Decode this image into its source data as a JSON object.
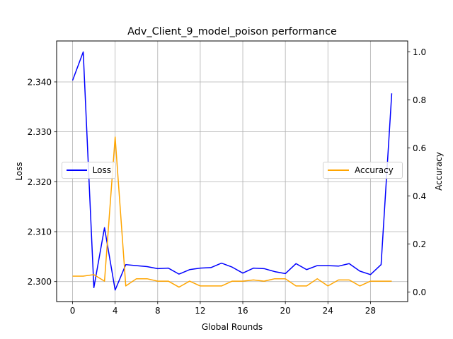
{
  "chart_data": {
    "type": "line",
    "title": "Adv_Client_9_model_poison performance",
    "xlabel": "Global Rounds",
    "ylabel_left": "Loss",
    "ylabel_right": "Accuracy",
    "x": [
      0,
      1,
      2,
      3,
      4,
      5,
      6,
      7,
      8,
      9,
      10,
      11,
      12,
      13,
      14,
      15,
      16,
      17,
      18,
      19,
      20,
      21,
      22,
      23,
      24,
      25,
      26,
      27,
      28,
      29,
      30
    ],
    "xticks": [
      0,
      4,
      8,
      12,
      16,
      20,
      24,
      28
    ],
    "xlim": [
      -1.5,
      31.5
    ],
    "ylim_left": [
      2.296,
      2.3482
    ],
    "yticks_left": [
      2.3,
      2.31,
      2.32,
      2.33,
      2.34
    ],
    "ytick_labels_left": [
      "2.300",
      "2.310",
      "2.320",
      "2.330",
      "2.340"
    ],
    "ylim_right": [
      -0.04,
      1.045
    ],
    "yticks_right": [
      0.0,
      0.2,
      0.4,
      0.6,
      0.8,
      1.0
    ],
    "ytick_labels_right": [
      "0.0",
      "0.2",
      "0.4",
      "0.6",
      "0.8",
      "1.0"
    ],
    "grid": true,
    "series": [
      {
        "name": "Loss",
        "axis": "left",
        "color": "#0000ff",
        "values": [
          2.3403,
          2.346,
          2.2988,
          2.3108,
          2.2983,
          2.3034,
          2.3032,
          2.303,
          2.3026,
          2.3027,
          2.3015,
          2.3024,
          2.3027,
          2.3028,
          2.3037,
          2.3029,
          2.3017,
          2.3027,
          2.3026,
          2.302,
          2.3016,
          2.3036,
          2.3024,
          2.3032,
          2.3032,
          2.3031,
          2.3036,
          2.3021,
          2.3014,
          2.3034,
          2.3377
        ]
      },
      {
        "name": "Accuracy",
        "axis": "right",
        "color": "#ffa500",
        "values": [
          0.066,
          0.066,
          0.072,
          0.045,
          0.645,
          0.025,
          0.055,
          0.055,
          0.045,
          0.045,
          0.02,
          0.045,
          0.025,
          0.025,
          0.025,
          0.045,
          0.045,
          0.05,
          0.045,
          0.055,
          0.055,
          0.025,
          0.025,
          0.055,
          0.025,
          0.05,
          0.05,
          0.025,
          0.045,
          0.045,
          0.045
        ]
      }
    ],
    "legend": [
      {
        "label": "Loss",
        "placement": "center-left"
      },
      {
        "label": "Accuracy",
        "placement": "center-right"
      }
    ]
  }
}
